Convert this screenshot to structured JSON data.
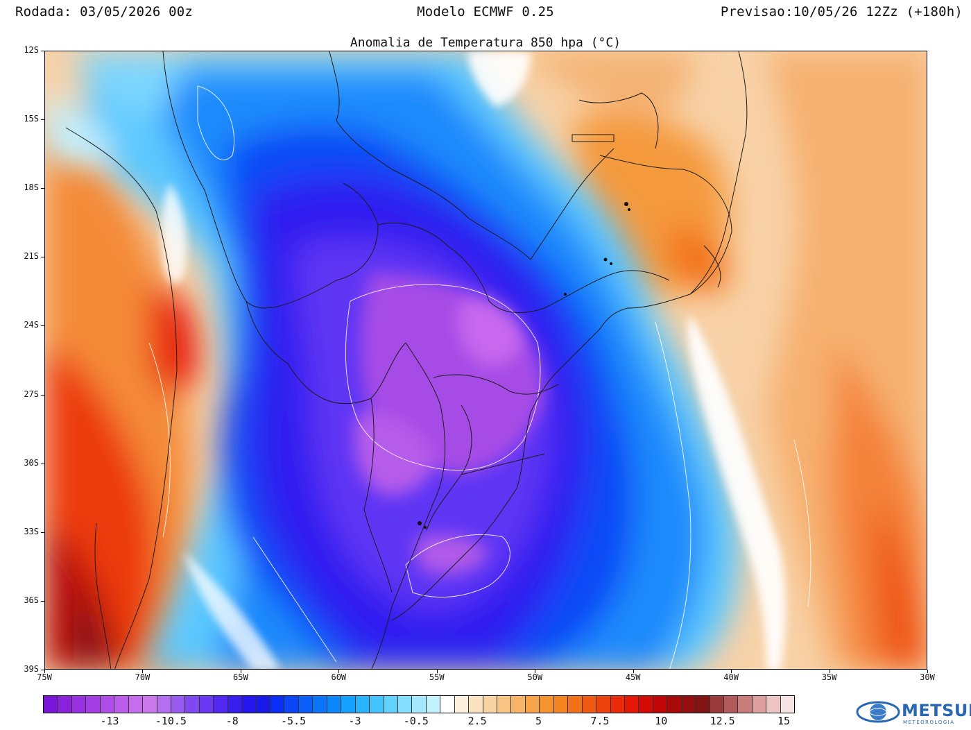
{
  "header": {
    "run": "Rodada: 03/05/2026 00z",
    "model": "Modelo ECMWF 0.25",
    "forecast": "Previsao:10/05/26 12Zz (+180h)"
  },
  "map": {
    "title": "Anomalia de Temperatura 850 hpa (°C)",
    "lat_labels": [
      "12S",
      "15S",
      "18S",
      "21S",
      "24S",
      "27S",
      "30S",
      "33S",
      "36S",
      "39S"
    ],
    "lon_labels": [
      "75W",
      "70W",
      "65W",
      "60W",
      "55W",
      "50W",
      "45W",
      "40W",
      "35W",
      "30W"
    ],
    "extent": {
      "lon_min": -75,
      "lon_max": -30,
      "lat_min": -39,
      "lat_max": -12
    }
  },
  "colorbar": {
    "labels": [
      "-13",
      "-10.5",
      "-8",
      "-5.5",
      "-3",
      "-0.5",
      "2.5",
      "5",
      "7.5",
      "10",
      "12.5",
      "15"
    ],
    "colors": [
      "#7a14d8",
      "#8a22dc",
      "#9630e0",
      "#a43ee4",
      "#b04ce8",
      "#bc5cec",
      "#c66cee",
      "#ca78ec",
      "#b66ef0",
      "#9a5cf0",
      "#8048f2",
      "#6838f4",
      "#5028f2",
      "#3a1ef0",
      "#2616ee",
      "#1a1ae8",
      "#0a2ef4",
      "#0a46f6",
      "#0c5ef8",
      "#0a74fa",
      "#0a88fc",
      "#14a0fe",
      "#28b4fe",
      "#44c4fe",
      "#62d2fe",
      "#84defe",
      "#a4e8fe",
      "#c4f2fe",
      "#ffffff",
      "#fdf0dc",
      "#fbe2c0",
      "#f9d4a2",
      "#f8c484",
      "#f7b466",
      "#f6a44a",
      "#f5942e",
      "#f48420",
      "#f27018",
      "#f05a12",
      "#ee420e",
      "#ec2a0a",
      "#e41808",
      "#d40a06",
      "#c00606",
      "#a80a0a",
      "#941010",
      "#821414",
      "#9a3a3a",
      "#b25a5a",
      "#c87c7c",
      "#dc9e9e",
      "#ecc4c4",
      "#f6e4e4"
    ]
  },
  "logo": {
    "name": "METSUL",
    "subtitle": "METEOROLOGIA"
  }
}
